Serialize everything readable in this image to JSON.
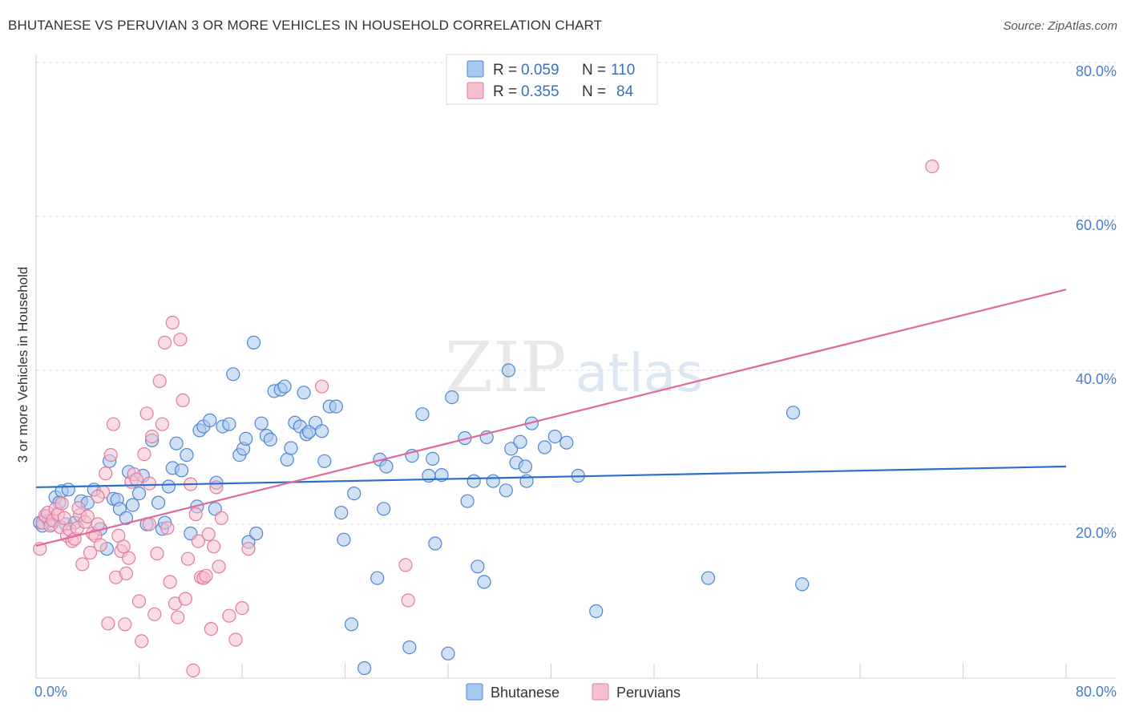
{
  "title": "BHUTANESE VS PERUVIAN 3 OR MORE VEHICLES IN HOUSEHOLD CORRELATION CHART",
  "source": "Source: ZipAtlas.com",
  "watermark": {
    "zip": "ZIP",
    "atlas": "atlas"
  },
  "legend": {
    "r_label": "R =",
    "n_label": "N =",
    "rows": [
      {
        "r": "0.059",
        "n": "110"
      },
      {
        "r": "0.355",
        "n": "84"
      }
    ]
  },
  "colors": {
    "blue_fill": "#a9c8ef",
    "blue_stroke": "#4f86cf",
    "blue_line": "#2a6fcb",
    "pink_fill": "#f6bfd0",
    "pink_stroke": "#e07c9f",
    "pink_line": "#e0689a"
  },
  "chart_data": {
    "type": "scatter",
    "ylabel": "3 or more Vehicles in Household",
    "xlim": [
      0,
      80
    ],
    "ylim": [
      0,
      80
    ],
    "x_tick_labels": [
      "0.0%",
      "80.0%"
    ],
    "y_tick_labels": [
      "20.0%",
      "40.0%",
      "60.0%",
      "80.0%"
    ],
    "y_tick_values": [
      20,
      40,
      60,
      80
    ],
    "series": [
      {
        "name": "Bhutanese",
        "trend": {
          "x": [
            0,
            80
          ],
          "y": [
            24.8,
            27.5
          ]
        },
        "points": [
          [
            0.3,
            20.2
          ],
          [
            0.5,
            19.8
          ],
          [
            0.8,
            21.0
          ],
          [
            1.0,
            20.5
          ],
          [
            1.2,
            20.0
          ],
          [
            1.5,
            23.5
          ],
          [
            1.8,
            22.8
          ],
          [
            2.0,
            24.3
          ],
          [
            2.3,
            20.0
          ],
          [
            2.5,
            24.5
          ],
          [
            3.0,
            20.2
          ],
          [
            3.5,
            23.0
          ],
          [
            4.0,
            22.8
          ],
          [
            4.5,
            24.5
          ],
          [
            5.0,
            19.4
          ],
          [
            5.5,
            16.8
          ],
          [
            5.7,
            28.2
          ],
          [
            6.0,
            23.3
          ],
          [
            6.3,
            23.2
          ],
          [
            6.5,
            22.0
          ],
          [
            7.0,
            20.8
          ],
          [
            7.2,
            26.8
          ],
          [
            7.5,
            22.5
          ],
          [
            8.0,
            24.0
          ],
          [
            8.3,
            26.3
          ],
          [
            8.6,
            20.0
          ],
          [
            9.0,
            30.9
          ],
          [
            9.5,
            22.8
          ],
          [
            9.8,
            19.4
          ],
          [
            10.0,
            20.2
          ],
          [
            10.3,
            24.9
          ],
          [
            10.6,
            27.3
          ],
          [
            10.9,
            30.5
          ],
          [
            11.3,
            27.0
          ],
          [
            11.7,
            29.0
          ],
          [
            12.0,
            18.8
          ],
          [
            12.5,
            22.3
          ],
          [
            12.7,
            32.2
          ],
          [
            13.0,
            32.7
          ],
          [
            13.5,
            33.5
          ],
          [
            13.9,
            22.0
          ],
          [
            14.0,
            25.4
          ],
          [
            14.5,
            32.7
          ],
          [
            15.0,
            33.0
          ],
          [
            15.3,
            39.5
          ],
          [
            15.8,
            29.0
          ],
          [
            16.1,
            29.8
          ],
          [
            16.3,
            31.1
          ],
          [
            16.5,
            17.7
          ],
          [
            16.9,
            43.6
          ],
          [
            17.1,
            18.8
          ],
          [
            17.5,
            33.1
          ],
          [
            17.9,
            31.5
          ],
          [
            18.2,
            31.0
          ],
          [
            18.5,
            37.3
          ],
          [
            19.0,
            37.5
          ],
          [
            19.3,
            37.9
          ],
          [
            19.5,
            28.4
          ],
          [
            19.8,
            29.9
          ],
          [
            20.1,
            33.2
          ],
          [
            20.5,
            32.7
          ],
          [
            20.8,
            37.1
          ],
          [
            21.0,
            31.7
          ],
          [
            21.2,
            32.0
          ],
          [
            21.7,
            33.2
          ],
          [
            22.2,
            32.1
          ],
          [
            22.4,
            28.2
          ],
          [
            22.8,
            35.3
          ],
          [
            23.3,
            35.3
          ],
          [
            23.7,
            21.5
          ],
          [
            23.9,
            18.0
          ],
          [
            24.5,
            7.0
          ],
          [
            24.7,
            24.0
          ],
          [
            25.5,
            1.3
          ],
          [
            26.5,
            13.0
          ],
          [
            26.7,
            28.4
          ],
          [
            27.0,
            22.0
          ],
          [
            27.2,
            27.5
          ],
          [
            29.0,
            4.0
          ],
          [
            29.2,
            28.9
          ],
          [
            30.0,
            34.3
          ],
          [
            30.5,
            26.3
          ],
          [
            30.8,
            28.5
          ],
          [
            31.0,
            17.5
          ],
          [
            31.5,
            26.4
          ],
          [
            32.0,
            3.2
          ],
          [
            32.3,
            36.5
          ],
          [
            33.3,
            31.2
          ],
          [
            33.5,
            23.0
          ],
          [
            34.0,
            25.6
          ],
          [
            34.3,
            14.5
          ],
          [
            34.8,
            12.5
          ],
          [
            35.0,
            31.3
          ],
          [
            35.5,
            25.6
          ],
          [
            36.5,
            24.4
          ],
          [
            36.7,
            40.0
          ],
          [
            36.9,
            29.8
          ],
          [
            37.3,
            28.0
          ],
          [
            37.6,
            30.7
          ],
          [
            38.0,
            27.5
          ],
          [
            38.1,
            25.6
          ],
          [
            38.5,
            33.1
          ],
          [
            39.5,
            30.0
          ],
          [
            40.3,
            31.4
          ],
          [
            41.2,
            30.6
          ],
          [
            42.1,
            26.3
          ],
          [
            43.5,
            8.7
          ],
          [
            52.2,
            13.0
          ],
          [
            58.8,
            34.5
          ],
          [
            59.5,
            12.2
          ]
        ]
      },
      {
        "name": "Peruvians",
        "trend": {
          "x": [
            0,
            80
          ],
          "y": [
            17.2,
            50.5
          ]
        },
        "points": [
          [
            0.3,
            16.8
          ],
          [
            0.5,
            20.2
          ],
          [
            0.7,
            21.1
          ],
          [
            0.9,
            21.5
          ],
          [
            1.1,
            19.8
          ],
          [
            1.3,
            20.5
          ],
          [
            1.5,
            22.0
          ],
          [
            1.7,
            21.3
          ],
          [
            1.9,
            19.6
          ],
          [
            2.0,
            22.7
          ],
          [
            2.2,
            20.8
          ],
          [
            2.4,
            18.5
          ],
          [
            2.6,
            19.3
          ],
          [
            2.8,
            17.8
          ],
          [
            3.0,
            18.1
          ],
          [
            3.2,
            19.5
          ],
          [
            3.4,
            21.2
          ],
          [
            3.6,
            14.8
          ],
          [
            3.8,
            20.3
          ],
          [
            4.0,
            21.0
          ],
          [
            4.2,
            16.3
          ],
          [
            4.4,
            18.8
          ],
          [
            4.6,
            18.5
          ],
          [
            4.8,
            20.0
          ],
          [
            5.0,
            17.3
          ],
          [
            5.2,
            24.2
          ],
          [
            5.4,
            26.6
          ],
          [
            5.6,
            7.1
          ],
          [
            5.8,
            29.0
          ],
          [
            6.0,
            33.0
          ],
          [
            6.2,
            13.1
          ],
          [
            6.4,
            18.5
          ],
          [
            6.6,
            16.5
          ],
          [
            6.8,
            17.1
          ],
          [
            7.0,
            13.6
          ],
          [
            7.2,
            15.6
          ],
          [
            7.4,
            25.5
          ],
          [
            7.6,
            26.5
          ],
          [
            7.8,
            25.8
          ],
          [
            8.0,
            10.0
          ],
          [
            8.2,
            4.8
          ],
          [
            8.4,
            29.1
          ],
          [
            8.6,
            34.4
          ],
          [
            8.8,
            25.3
          ],
          [
            9.0,
            31.4
          ],
          [
            9.2,
            8.3
          ],
          [
            9.4,
            16.2
          ],
          [
            9.6,
            38.6
          ],
          [
            9.8,
            33.0
          ],
          [
            10.0,
            43.6
          ],
          [
            10.2,
            19.5
          ],
          [
            10.4,
            12.5
          ],
          [
            10.6,
            46.2
          ],
          [
            10.8,
            9.7
          ],
          [
            11.0,
            7.9
          ],
          [
            11.2,
            44.0
          ],
          [
            11.4,
            36.1
          ],
          [
            11.6,
            10.3
          ],
          [
            11.8,
            15.5
          ],
          [
            12.0,
            25.2
          ],
          [
            12.2,
            1.0
          ],
          [
            12.4,
            21.3
          ],
          [
            12.6,
            17.8
          ],
          [
            12.8,
            13.1
          ],
          [
            13.0,
            13.0
          ],
          [
            13.2,
            13.3
          ],
          [
            13.4,
            18.7
          ],
          [
            13.6,
            6.4
          ],
          [
            13.8,
            17.1
          ],
          [
            14.0,
            24.8
          ],
          [
            14.2,
            14.5
          ],
          [
            14.4,
            20.8
          ],
          [
            15.0,
            8.1
          ],
          [
            15.5,
            5.0
          ],
          [
            16.0,
            9.1
          ],
          [
            16.5,
            16.8
          ],
          [
            22.2,
            37.9
          ],
          [
            28.7,
            14.7
          ],
          [
            28.9,
            10.1
          ],
          [
            8.8,
            20.0
          ],
          [
            6.9,
            7.0
          ],
          [
            4.8,
            23.6
          ],
          [
            3.3,
            22.1
          ],
          [
            69.6,
            66.5
          ]
        ]
      }
    ]
  },
  "bottom_legend": [
    {
      "label": "Bhutanese"
    },
    {
      "label": "Peruvians"
    }
  ]
}
